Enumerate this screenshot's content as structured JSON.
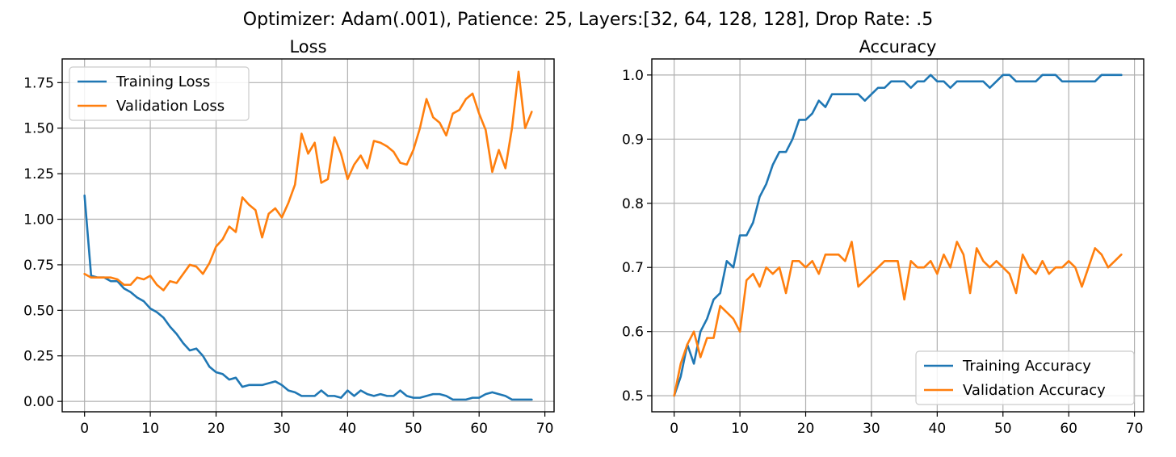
{
  "suptitle": "Optimizer: Adam(.001), Patience: 25, Layers:[32, 64, 128, 128], Drop Rate: .5",
  "colors": {
    "training": "#1f77b4",
    "validation": "#ff7f0e",
    "grid": "#b0b0b0"
  },
  "chart_data": [
    {
      "type": "line",
      "title": "Loss",
      "xlabel": "",
      "ylabel": "",
      "grid": true,
      "legend_position": "top-left",
      "xlim": [
        -3.4,
        71.4
      ],
      "ylim": [
        -0.057,
        1.88
      ],
      "xticks": [
        0,
        10,
        20,
        30,
        40,
        50,
        60,
        70
      ],
      "xtick_labels": [
        "0",
        "10",
        "20",
        "30",
        "40",
        "50",
        "60",
        "70"
      ],
      "yticks": [
        0,
        0.25,
        0.5,
        0.75,
        1.0,
        1.25,
        1.5,
        1.75
      ],
      "ytick_labels": [
        "0.00",
        "0.25",
        "0.50",
        "0.75",
        "1.00",
        "1.25",
        "1.50",
        "1.75"
      ],
      "series": [
        {
          "name": "Training Loss",
          "color": "#1f77b4",
          "values": [
            1.13,
            0.69,
            0.68,
            0.68,
            0.66,
            0.66,
            0.62,
            0.6,
            0.57,
            0.55,
            0.51,
            0.49,
            0.46,
            0.41,
            0.37,
            0.32,
            0.28,
            0.29,
            0.25,
            0.19,
            0.16,
            0.15,
            0.12,
            0.13,
            0.08,
            0.09,
            0.09,
            0.09,
            0.1,
            0.11,
            0.09,
            0.06,
            0.05,
            0.03,
            0.03,
            0.03,
            0.06,
            0.03,
            0.03,
            0.02,
            0.06,
            0.03,
            0.06,
            0.04,
            0.03,
            0.04,
            0.03,
            0.03,
            0.06,
            0.03,
            0.02,
            0.02,
            0.03,
            0.04,
            0.04,
            0.03,
            0.01,
            0.01,
            0.01,
            0.02,
            0.02,
            0.04,
            0.05,
            0.04,
            0.03,
            0.01,
            0.01,
            0.01,
            0.01
          ]
        },
        {
          "name": "Validation Loss",
          "color": "#ff7f0e",
          "values": [
            0.7,
            0.68,
            0.68,
            0.68,
            0.68,
            0.67,
            0.64,
            0.64,
            0.68,
            0.67,
            0.69,
            0.64,
            0.61,
            0.66,
            0.65,
            0.7,
            0.75,
            0.74,
            0.7,
            0.76,
            0.85,
            0.89,
            0.96,
            0.93,
            1.12,
            1.08,
            1.05,
            0.9,
            1.03,
            1.06,
            1.01,
            1.09,
            1.19,
            1.47,
            1.36,
            1.42,
            1.2,
            1.22,
            1.45,
            1.36,
            1.22,
            1.3,
            1.35,
            1.28,
            1.43,
            1.42,
            1.4,
            1.37,
            1.31,
            1.3,
            1.38,
            1.5,
            1.66,
            1.56,
            1.53,
            1.46,
            1.58,
            1.6,
            1.66,
            1.69,
            1.58,
            1.49,
            1.26,
            1.38,
            1.28,
            1.5,
            1.81,
            1.5,
            1.59
          ]
        }
      ]
    },
    {
      "type": "line",
      "title": "Accuracy",
      "xlabel": "",
      "ylabel": "",
      "grid": true,
      "legend_position": "bottom-right",
      "xlim": [
        -3.4,
        71.4
      ],
      "ylim": [
        0.475,
        1.025
      ],
      "xticks": [
        0,
        10,
        20,
        30,
        40,
        50,
        60,
        70
      ],
      "xtick_labels": [
        "0",
        "10",
        "20",
        "30",
        "40",
        "50",
        "60",
        "70"
      ],
      "yticks": [
        0.5,
        0.6,
        0.7,
        0.8,
        0.9,
        1.0
      ],
      "ytick_labels": [
        "0.5",
        "0.6",
        "0.7",
        "0.8",
        "0.9",
        "1.0"
      ],
      "series": [
        {
          "name": "Training Accuracy",
          "color": "#1f77b4",
          "values": [
            0.5,
            0.53,
            0.58,
            0.55,
            0.6,
            0.62,
            0.65,
            0.66,
            0.71,
            0.7,
            0.75,
            0.75,
            0.77,
            0.81,
            0.83,
            0.86,
            0.88,
            0.88,
            0.9,
            0.93,
            0.93,
            0.94,
            0.96,
            0.95,
            0.97,
            0.97,
            0.97,
            0.97,
            0.97,
            0.96,
            0.97,
            0.98,
            0.98,
            0.99,
            0.99,
            0.99,
            0.98,
            0.99,
            0.99,
            1.0,
            0.99,
            0.99,
            0.98,
            0.99,
            0.99,
            0.99,
            0.99,
            0.99,
            0.98,
            0.99,
            1.0,
            1.0,
            0.99,
            0.99,
            0.99,
            0.99,
            1.0,
            1.0,
            1.0,
            0.99,
            0.99,
            0.99,
            0.99,
            0.99,
            0.99,
            1.0,
            1.0,
            1.0,
            1.0
          ]
        },
        {
          "name": "Validation Accuracy",
          "color": "#ff7f0e",
          "values": [
            0.5,
            0.55,
            0.58,
            0.6,
            0.56,
            0.59,
            0.59,
            0.64,
            0.63,
            0.62,
            0.6,
            0.68,
            0.69,
            0.67,
            0.7,
            0.69,
            0.7,
            0.66,
            0.71,
            0.71,
            0.7,
            0.71,
            0.69,
            0.72,
            0.72,
            0.72,
            0.71,
            0.74,
            0.67,
            0.68,
            0.69,
            0.7,
            0.71,
            0.71,
            0.71,
            0.65,
            0.71,
            0.7,
            0.7,
            0.71,
            0.69,
            0.72,
            0.7,
            0.74,
            0.72,
            0.66,
            0.73,
            0.71,
            0.7,
            0.71,
            0.7,
            0.69,
            0.66,
            0.72,
            0.7,
            0.69,
            0.71,
            0.69,
            0.7,
            0.7,
            0.71,
            0.7,
            0.67,
            0.7,
            0.73,
            0.72,
            0.7,
            0.71,
            0.72
          ]
        }
      ]
    }
  ]
}
